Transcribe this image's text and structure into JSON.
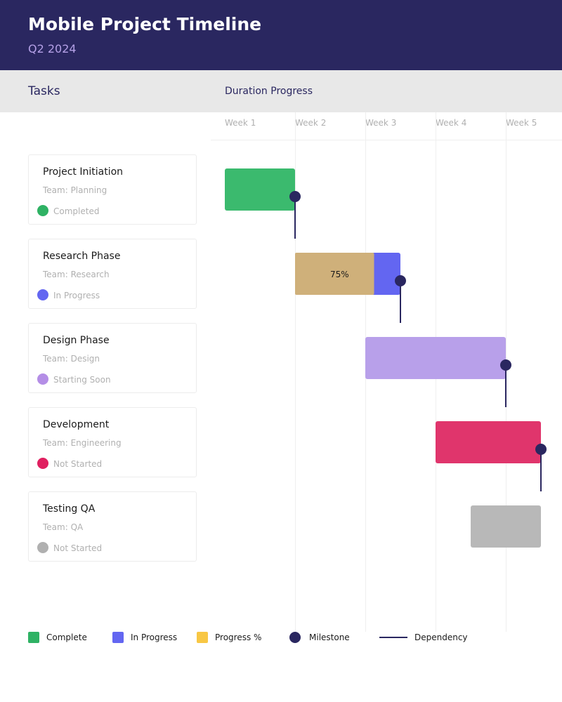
{
  "header": {
    "title": "Mobile Project Timeline",
    "subtitle": "Q2 2024"
  },
  "columns": {
    "tasks_label": "Tasks",
    "duration_label": "Duration Progress"
  },
  "chart_data": {
    "type": "gantt",
    "title": "Mobile Project Timeline",
    "subtitle": "Q2 2024",
    "x_axis": {
      "unit": "week",
      "range": [
        1,
        6
      ],
      "tick_labels": [
        "Week 1",
        "Week 2",
        "Week 3",
        "Week 4",
        "Week 5"
      ]
    },
    "grid": true,
    "legend_placement": "bottom",
    "tasks": [
      {
        "name": "Project Initiation",
        "team": "Team: Planning",
        "status": "Completed",
        "start": 1,
        "end": 2,
        "color": "#3bba6e",
        "dot_color": "#2fb264",
        "progress": null,
        "milestone_at": 2
      },
      {
        "name": "Research Phase",
        "team": "Team: Research",
        "status": "In Progress",
        "start": 2,
        "end": 3.5,
        "color": "#6366f1",
        "dot_color": "#6366f1",
        "progress": 0.75,
        "progress_label": "75%",
        "progress_color": "#cfb07a",
        "milestone_at": 3.5
      },
      {
        "name": "Design Phase",
        "team": "Team: Design",
        "status": "Starting Soon",
        "start": 3,
        "end": 5,
        "color": "#b8a0ea",
        "dot_color": "#b48ee6",
        "progress": null,
        "milestone_at": 5
      },
      {
        "name": "Development",
        "team": "Team: Engineering",
        "status": "Not Started",
        "start": 4,
        "end": 5.5,
        "color": "#e0356c",
        "dot_color": "#e02060",
        "progress": null,
        "milestone_at": 5.5
      },
      {
        "name": "Testing QA",
        "team": "Team: QA",
        "status": "Not Started",
        "start": 4.5,
        "end": 5.5,
        "color": "#b8b8b8",
        "dot_color": "#b0b0b0",
        "progress": null,
        "milestone_at": null
      }
    ],
    "legend": [
      {
        "label": "Complete",
        "color": "#2fb264",
        "shape": "square"
      },
      {
        "label": "In Progress",
        "color": "#6366f1",
        "shape": "square"
      },
      {
        "label": "Progress %",
        "color": "#f8c744",
        "shape": "square"
      },
      {
        "label": "Milestone",
        "color": "#2a2760",
        "shape": "circle"
      },
      {
        "label": "Dependency",
        "color": "#2a2760",
        "shape": "line"
      }
    ],
    "milestone_color": "#2a2760"
  }
}
